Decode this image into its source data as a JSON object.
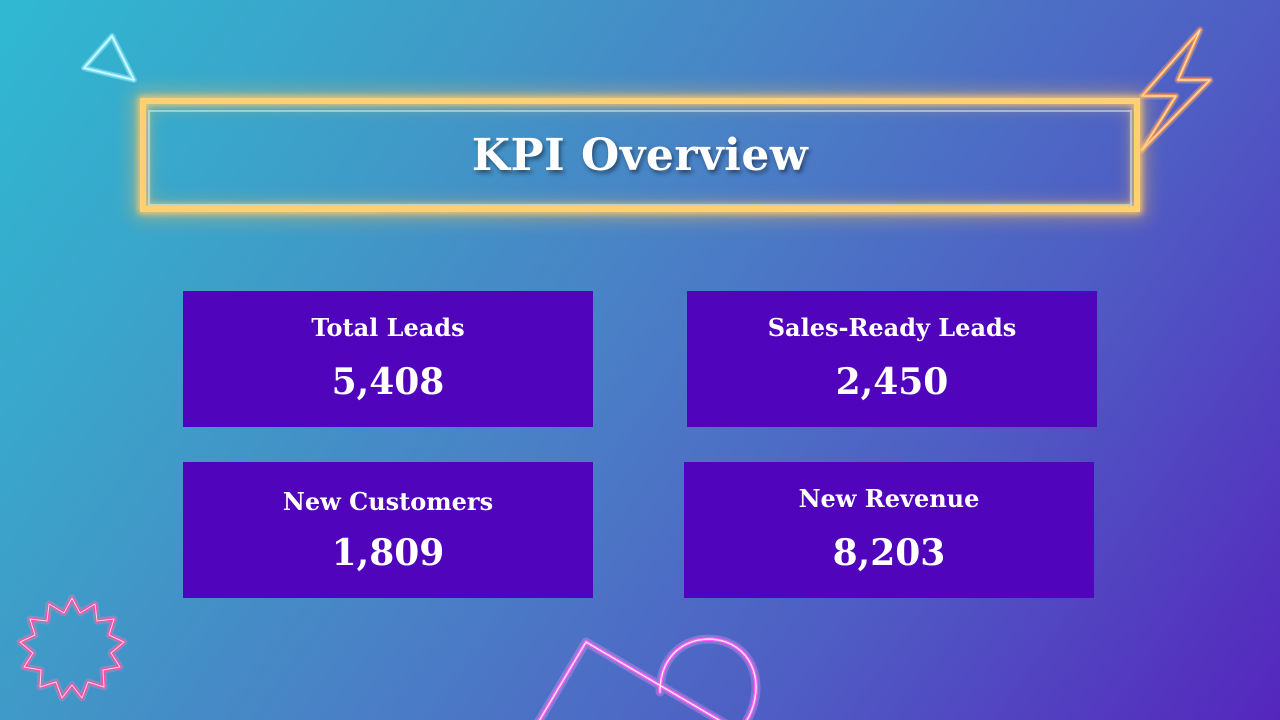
{
  "slide": {
    "title": "KPI Overview"
  },
  "kpis": [
    {
      "label": "Total Leads",
      "value": "5,408"
    },
    {
      "label": "Sales-Ready Leads",
      "value": "2,450"
    },
    {
      "label": "New Customers",
      "value": "1,809"
    },
    {
      "label": "New Revenue",
      "value": "8,203"
    }
  ],
  "colors": {
    "card_background": "#5005bc",
    "title_frame_neon": "#ffcf74",
    "triangle_neon": "#7fe9ff",
    "lightning_neon": "#ff9a4a",
    "starburst_neon": "#ff4fa0",
    "padlock_neon": "#ff66ff",
    "text": "#ffffff"
  },
  "decorations": [
    "triangle-icon",
    "lightning-bolt-icon",
    "starburst-icon",
    "padlock-icon"
  ]
}
